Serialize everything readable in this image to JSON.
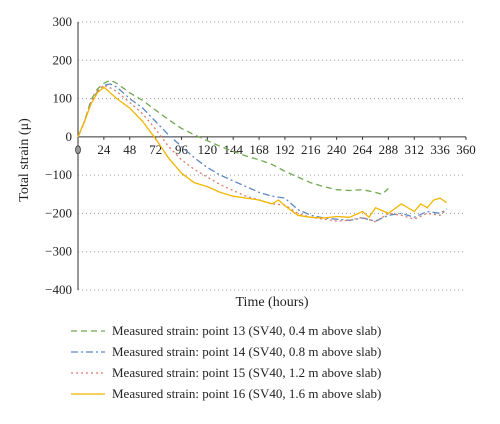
{
  "chart_data": {
    "type": "line",
    "xlabel": "Time (hours)",
    "ylabel": "Total strain (μ)",
    "xlim": [
      0,
      360
    ],
    "ylim": [
      -400,
      300
    ],
    "xticks": [
      "0",
      "24",
      "48",
      "72",
      "96",
      "120",
      "144",
      "168",
      "192",
      "216",
      "240",
      "264",
      "288",
      "312",
      "336",
      "360"
    ],
    "yticks": [
      "300",
      "200",
      "100",
      "0",
      "−100",
      "−200",
      "−300",
      "−400"
    ],
    "grid": "horizontal dotted",
    "legend_position": "bottom",
    "series": [
      {
        "name": "Measured strain: point 13 (SV40, 0.4 m above slab)",
        "color": "#6fa84e",
        "dash": "dashed",
        "x": [
          0,
          6,
          12,
          18,
          24,
          30,
          36,
          48,
          60,
          72,
          84,
          96,
          108,
          120,
          132,
          144,
          156,
          168,
          180,
          192,
          204,
          216,
          228,
          240,
          252,
          264,
          276,
          282,
          288
        ],
        "y": [
          0,
          40,
          95,
          125,
          140,
          148,
          140,
          115,
          95,
          70,
          45,
          22,
          5,
          -10,
          -25,
          -38,
          -50,
          -60,
          -72,
          -90,
          -105,
          -120,
          -130,
          -138,
          -140,
          -138,
          -145,
          -150,
          -135
        ]
      },
      {
        "name": "Measured strain: point 14 (SV40, 0.8 m above slab)",
        "color": "#5b88c4",
        "dash": "dashdot",
        "x": [
          0,
          6,
          12,
          18,
          24,
          30,
          36,
          48,
          60,
          72,
          84,
          96,
          108,
          120,
          132,
          144,
          156,
          168,
          180,
          192,
          204,
          216,
          228,
          240,
          252,
          264,
          276,
          288,
          300,
          312,
          324,
          336,
          342
        ],
        "y": [
          0,
          40,
          90,
          118,
          135,
          138,
          130,
          100,
          75,
          40,
          5,
          -25,
          -55,
          -80,
          -100,
          -115,
          -130,
          -145,
          -155,
          -160,
          -190,
          -205,
          -212,
          -215,
          -218,
          -212,
          -220,
          -205,
          -200,
          -210,
          -195,
          -200,
          -188
        ]
      },
      {
        "name": "Measured strain: point 15 (SV40, 1.2 m above slab)",
        "color": "#e07a6a",
        "dash": "dotted",
        "x": [
          0,
          6,
          12,
          18,
          24,
          30,
          36,
          48,
          60,
          72,
          84,
          96,
          108,
          120,
          132,
          144,
          156,
          168,
          180,
          192,
          204,
          216,
          228,
          240,
          252,
          264,
          276,
          288,
          300,
          312,
          324,
          336,
          342
        ],
        "y": [
          0,
          40,
          90,
          120,
          135,
          128,
          118,
          90,
          60,
          20,
          -25,
          -60,
          -85,
          -105,
          -125,
          -140,
          -155,
          -165,
          -175,
          -178,
          -200,
          -210,
          -215,
          -220,
          -218,
          -210,
          -222,
          -200,
          -205,
          -215,
          -200,
          -205,
          -190
        ]
      },
      {
        "name": "Measured strain: point 16 (SV40, 1.6 m above slab)",
        "color": "#f2b600",
        "dash": "solid",
        "x": [
          0,
          6,
          12,
          18,
          24,
          30,
          36,
          48,
          60,
          72,
          84,
          96,
          108,
          120,
          132,
          144,
          156,
          168,
          180,
          186,
          192,
          204,
          216,
          228,
          240,
          252,
          264,
          270,
          276,
          288,
          300,
          312,
          318,
          324,
          330,
          336,
          342
        ],
        "y": [
          0,
          40,
          85,
          115,
          130,
          115,
          100,
          75,
          40,
          -5,
          -55,
          -95,
          -120,
          -130,
          -145,
          -155,
          -160,
          -165,
          -175,
          -165,
          -180,
          -205,
          -210,
          -212,
          -208,
          -210,
          -195,
          -210,
          -185,
          -200,
          -175,
          -195,
          -175,
          -185,
          -165,
          -160,
          -172
        ]
      }
    ]
  }
}
